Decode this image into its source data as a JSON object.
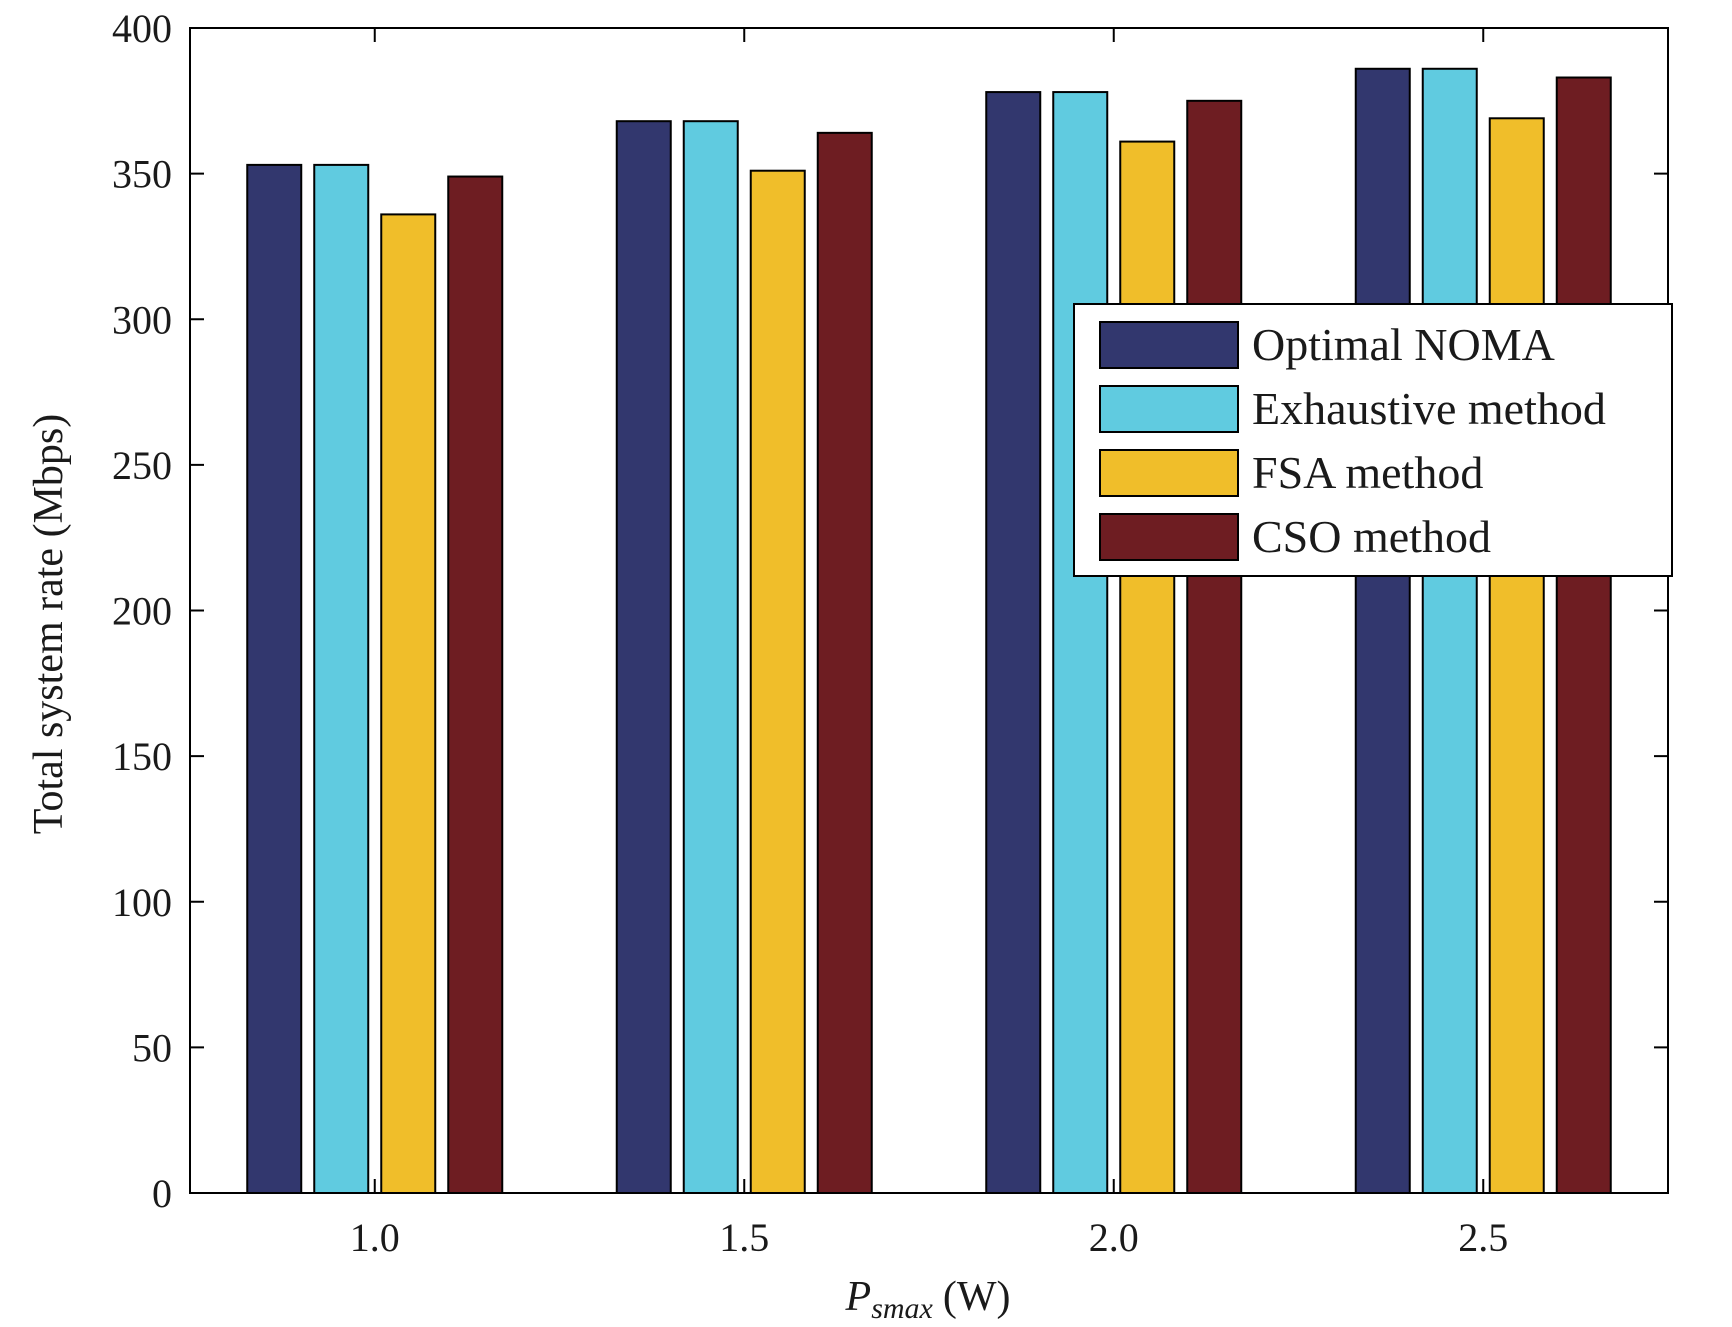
{
  "chart_data": {
    "type": "bar",
    "title": "",
    "xlabel": {
      "symbol": "P",
      "subscript": "smax",
      "unit": "(W)"
    },
    "ylabel": "Total system rate (Mbps)",
    "ylim": [
      0,
      400
    ],
    "yticks": [
      0,
      50,
      100,
      150,
      200,
      250,
      300,
      350,
      400
    ],
    "categories": [
      "1.0",
      "1.5",
      "2.0",
      "2.5"
    ],
    "series": [
      {
        "name": "Optimal NOMA",
        "color": "#32376e",
        "values": [
          353,
          368,
          378,
          386
        ]
      },
      {
        "name": "Exhaustive method",
        "color": "#60cbe0",
        "values": [
          353,
          368,
          378,
          386
        ]
      },
      {
        "name": "FSA method",
        "color": "#f0be2a",
        "values": [
          336,
          351,
          361,
          369
        ]
      },
      {
        "name": "CSO method",
        "color": "#6e1d22",
        "values": [
          349,
          364,
          375,
          383
        ]
      }
    ],
    "legend_position": "right, upper-middle",
    "grid": false
  }
}
